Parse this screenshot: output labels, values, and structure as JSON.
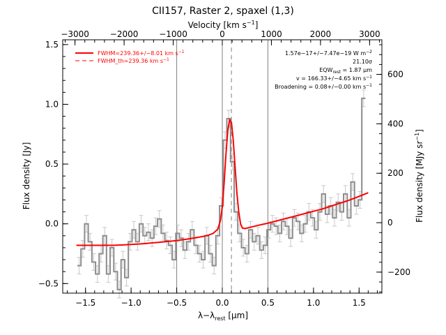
{
  "chart_data": {
    "type": "line",
    "title": "CII157, Raster 2, spaxel (1,3)",
    "xlabel": "λ−λ",
    "xlabel_sub": "rest",
    "xlabel_unit": " [μm]",
    "ylabel": "Flux density [Jy]",
    "top_axis_label": "Velocity [km s",
    "top_axis_label_sup": "−1",
    "top_axis_label_end": "]",
    "right_axis_label": "Flux density [MJy sr",
    "right_axis_label_sup": "−1",
    "right_axis_label_end": "]",
    "xlim": [
      -1.75,
      1.75
    ],
    "ylim": [
      -0.58,
      1.54
    ],
    "vlim": [
      -3250,
      3250
    ],
    "right_ylim": [
      -285,
      740
    ],
    "x_ticks": [
      -1.5,
      -1.0,
      -0.5,
      0.0,
      0.5,
      1.0,
      1.5
    ],
    "x_tick_labels": [
      "−1.5",
      "−1.0",
      "−0.5",
      "0.0",
      "0.5",
      "1.0",
      "1.5"
    ],
    "y_ticks": [
      -0.5,
      0.0,
      0.5,
      1.0,
      1.5
    ],
    "y_tick_labels": [
      "−0.5",
      "0.0",
      "0.5",
      "1.0",
      "1.5"
    ],
    "v_ticks": [
      -3000,
      -2000,
      -1000,
      0,
      1000,
      2000,
      3000
    ],
    "v_tick_labels": [
      "−3000",
      "−2000",
      "−1000",
      "0",
      "1000",
      "2000",
      "3000"
    ],
    "right_ticks": [
      -200,
      0,
      200,
      400,
      600
    ],
    "right_tick_labels": [
      "−200",
      "0",
      "200",
      "400",
      "600"
    ],
    "vertical_lines_solid": [
      -0.5,
      0.0,
      0.5
    ],
    "vertical_line_dashed": 0.1,
    "legend": [
      {
        "label": "FWHM=239.36+/−8.01 km s",
        "sup": "−1",
        "style": "solid"
      },
      {
        "label": "FWHM_th=239.36 km s",
        "sup": "−1",
        "style": "dashed"
      }
    ],
    "annotations": [
      {
        "text": "1.57e−17+/−7.47e−19 W m",
        "sup": "−2"
      },
      {
        "text": "21.10σ"
      },
      {
        "text": "EQW",
        "sub": "rest",
        "text_after": " = 1.87 μm"
      },
      {
        "text": "v = 166.33+/−4.65 km s",
        "sup": "−1"
      },
      {
        "text": "Broadening = 0.08+/−0.00 km s",
        "sup": "−1"
      }
    ],
    "colors": {
      "fit": "#ff0000",
      "data": "#8c8c8c",
      "errorbar": "#c8c8c8",
      "lines": "#808080"
    },
    "series": [
      {
        "style": "step-with-errorbars",
        "x": [
          -1.57,
          -1.53,
          -1.49,
          -1.45,
          -1.41,
          -1.37,
          -1.33,
          -1.29,
          -1.25,
          -1.21,
          -1.17,
          -1.13,
          -1.09,
          -1.05,
          -1.01,
          -0.97,
          -0.93,
          -0.89,
          -0.85,
          -0.81,
          -0.77,
          -0.73,
          -0.69,
          -0.65,
          -0.61,
          -0.57,
          -0.53,
          -0.49,
          -0.45,
          -0.41,
          -0.37,
          -0.33,
          -0.29,
          -0.25,
          -0.21,
          -0.17,
          -0.13,
          -0.09,
          -0.05,
          -0.01,
          0.03,
          0.07,
          0.11,
          0.15,
          0.19,
          0.23,
          0.27,
          0.31,
          0.35,
          0.39,
          0.43,
          0.47,
          0.51,
          0.55,
          0.59,
          0.63,
          0.67,
          0.71,
          0.75,
          0.79,
          0.83,
          0.87,
          0.91,
          0.95,
          0.99,
          1.03,
          1.07,
          1.11,
          1.15,
          1.19,
          1.23,
          1.27,
          1.31,
          1.35,
          1.39,
          1.43,
          1.47,
          1.51,
          1.55
        ],
        "y": [
          -0.35,
          -0.21,
          0.0,
          -0.15,
          -0.32,
          -0.42,
          -0.25,
          -0.1,
          -0.42,
          -0.2,
          -0.4,
          -0.55,
          -0.3,
          -0.45,
          -0.15,
          -0.05,
          -0.15,
          0.0,
          -0.1,
          -0.07,
          -0.12,
          -0.02,
          0.04,
          -0.08,
          -0.14,
          -0.18,
          -0.3,
          -0.08,
          -0.12,
          -0.22,
          -0.15,
          -0.05,
          -0.18,
          -0.25,
          -0.3,
          -0.1,
          -0.25,
          -0.35,
          -0.1,
          0.15,
          0.7,
          0.88,
          0.52,
          0.1,
          -0.08,
          -0.2,
          -0.25,
          -0.05,
          -0.15,
          -0.1,
          -0.22,
          -0.18,
          -0.05,
          0.0,
          -0.02,
          -0.08,
          0.02,
          -0.02,
          -0.12,
          0.05,
          0.02,
          -0.08,
          0.0,
          0.1,
          0.05,
          -0.05,
          0.1,
          0.25,
          0.08,
          0.15,
          0.05,
          0.18,
          0.1,
          0.25,
          0.05,
          0.35,
          0.15,
          0.2,
          1.05
        ],
        "err": 0.07
      },
      {
        "style": "fit-solid",
        "x": [
          -1.6,
          -1.5,
          -1.4,
          -1.3,
          -1.2,
          -1.1,
          -1.0,
          -0.9,
          -0.8,
          -0.7,
          -0.6,
          -0.5,
          -0.4,
          -0.3,
          -0.2,
          -0.15,
          -0.1,
          -0.05,
          -0.02,
          0.0,
          0.02,
          0.04,
          0.06,
          0.08,
          0.1,
          0.12,
          0.14,
          0.16,
          0.18,
          0.2,
          0.22,
          0.25,
          0.3,
          0.4,
          0.5,
          0.6,
          0.7,
          0.8,
          0.9,
          1.0,
          1.1,
          1.2,
          1.3,
          1.4,
          1.5,
          1.6
        ],
        "y": [
          -0.18,
          -0.18,
          -0.18,
          -0.18,
          -0.18,
          -0.177,
          -0.173,
          -0.168,
          -0.162,
          -0.155,
          -0.148,
          -0.14,
          -0.13,
          -0.118,
          -0.104,
          -0.094,
          -0.08,
          -0.045,
          0.03,
          0.14,
          0.34,
          0.58,
          0.78,
          0.87,
          0.85,
          0.7,
          0.48,
          0.26,
          0.1,
          0.0,
          -0.035,
          -0.04,
          -0.03,
          -0.012,
          0.005,
          0.025,
          0.045,
          0.065,
          0.085,
          0.105,
          0.125,
          0.15,
          0.175,
          0.2,
          0.23,
          0.26
        ]
      },
      {
        "style": "fit-dashed",
        "x": [
          -0.1,
          -0.05,
          -0.02,
          0.0,
          0.02,
          0.04,
          0.06,
          0.08,
          0.1,
          0.12,
          0.14,
          0.16,
          0.18,
          0.2,
          0.22,
          0.25
        ],
        "y": [
          -0.08,
          -0.045,
          0.03,
          0.14,
          0.34,
          0.58,
          0.78,
          0.87,
          0.85,
          0.7,
          0.48,
          0.26,
          0.1,
          0.0,
          -0.035,
          -0.04
        ]
      }
    ]
  }
}
